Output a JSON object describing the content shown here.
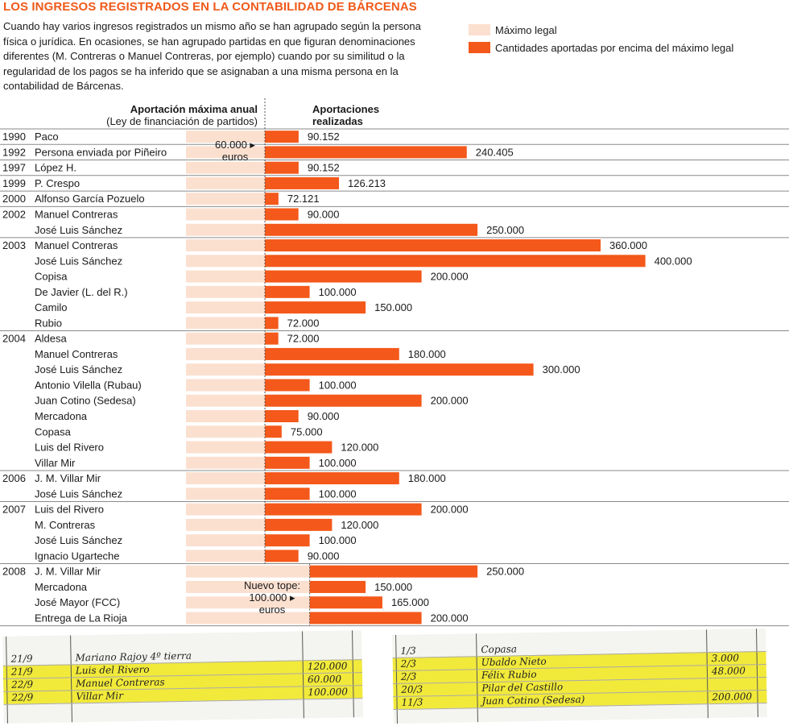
{
  "title": "LOS INGRESOS REGISTRADOS EN LA CONTABILIDAD DE BÁRCENAS",
  "intro": "Cuando hay varios ingresos registrados un mismo año se han agrupado según la persona física o jurídica. En ocasiones, se han agrupado partidas en que figuran denominaciones diferentes (M. Contreras o Manuel Contreras, por ejemplo) cuando por su similitud o la regularidad de los pagos se ha inferido que se asignaban a una misma persona en la contabilidad de Bárcenas.",
  "legend": {
    "max_legal": "Máximo legal",
    "above_max": "Cantidades aportadas por encima del máximo legal"
  },
  "colors": {
    "accent": "#ef5a1a",
    "bar": "#f4581a",
    "max_legal": "#fbe0d0",
    "grid": "#8a8a8a"
  },
  "headers": {
    "left_bold": "Aportación máxima anual",
    "left_sub": "(Ley de financiación de partidos)",
    "right_line1": "Aportaciones",
    "right_line2": "realizadas"
  },
  "chart_data": {
    "type": "bar",
    "orientation": "horizontal",
    "unit": "euros",
    "rows": [
      {
        "year": "1990",
        "name": "Paco",
        "value": 90152,
        "label": "90.152",
        "max_legal": 60000
      },
      {
        "year": "1992",
        "name": "Persona enviada por Piñeiro",
        "value": 240405,
        "label": "240.405",
        "max_legal": 60000
      },
      {
        "year": "1997",
        "name": "López H.",
        "value": 90152,
        "label": "90.152",
        "max_legal": 60000
      },
      {
        "year": "1999",
        "name": "P. Crespo",
        "value": 126213,
        "label": "126.213",
        "max_legal": 60000
      },
      {
        "year": "2000",
        "name": "Alfonso García Pozuelo",
        "value": 72121,
        "label": "72.121",
        "max_legal": 60000
      },
      {
        "year": "2002",
        "name": "Manuel Contreras",
        "value": 90000,
        "label": "90.000",
        "max_legal": 60000
      },
      {
        "year": "",
        "name": "José Luis Sánchez",
        "value": 250000,
        "label": "250.000",
        "max_legal": 60000
      },
      {
        "year": "2003",
        "name": "Manuel Contreras",
        "value": 360000,
        "label": "360.000",
        "max_legal": 60000
      },
      {
        "year": "",
        "name": "José Luis Sánchez",
        "value": 400000,
        "label": "400.000",
        "max_legal": 60000
      },
      {
        "year": "",
        "name": "Copisa",
        "value": 200000,
        "label": "200.000",
        "max_legal": 60000
      },
      {
        "year": "",
        "name": "De Javier (L. del R.)",
        "value": 100000,
        "label": "100.000",
        "max_legal": 60000
      },
      {
        "year": "",
        "name": "Camilo",
        "value": 150000,
        "label": "150.000",
        "max_legal": 60000
      },
      {
        "year": "",
        "name": "Rubio",
        "value": 72000,
        "label": "72.000",
        "max_legal": 60000
      },
      {
        "year": "2004",
        "name": "Aldesa",
        "value": 72000,
        "label": "72.000",
        "max_legal": 60000
      },
      {
        "year": "",
        "name": "Manuel Contreras",
        "value": 180000,
        "label": "180.000",
        "max_legal": 60000
      },
      {
        "year": "",
        "name": "José Luis Sánchez",
        "value": 300000,
        "label": "300.000",
        "max_legal": 60000
      },
      {
        "year": "",
        "name": "Antonio Vilella (Rubau)",
        "value": 100000,
        "label": "100.000",
        "max_legal": 60000
      },
      {
        "year": "",
        "name": "Juan Cotino (Sedesa)",
        "value": 200000,
        "label": "200.000",
        "max_legal": 60000
      },
      {
        "year": "",
        "name": "Mercadona",
        "value": 90000,
        "label": "90.000",
        "max_legal": 60000
      },
      {
        "year": "",
        "name": "Copasa",
        "value": 75000,
        "label": "75.000",
        "max_legal": 60000
      },
      {
        "year": "",
        "name": "Luis del Rivero",
        "value": 120000,
        "label": "120.000",
        "max_legal": 60000
      },
      {
        "year": "",
        "name": "Villar Mir",
        "value": 100000,
        "label": "100.000",
        "max_legal": 60000
      },
      {
        "year": "2006",
        "name": "J. M. Villar Mir",
        "value": 180000,
        "label": "180.000",
        "max_legal": 60000
      },
      {
        "year": "",
        "name": "José Luis Sánchez",
        "value": 100000,
        "label": "100.000",
        "max_legal": 60000
      },
      {
        "year": "2007",
        "name": "Luis del Rivero",
        "value": 200000,
        "label": "200.000",
        "max_legal": 60000
      },
      {
        "year": "",
        "name": "M. Contreras",
        "value": 120000,
        "label": "120.000",
        "max_legal": 60000
      },
      {
        "year": "",
        "name": "José Luis Sánchez",
        "value": 100000,
        "label": "100.000",
        "max_legal": 60000
      },
      {
        "year": "",
        "name": "Ignacio Ugarteche",
        "value": 90000,
        "label": "90.000",
        "max_legal": 60000
      },
      {
        "year": "2008",
        "name": "J. M. Villar Mir",
        "value": 250000,
        "label": "250.000",
        "max_legal": 100000
      },
      {
        "year": "",
        "name": "Mercadona",
        "value": 150000,
        "label": "150.000",
        "max_legal": 100000
      },
      {
        "year": "",
        "name": "José Mayor (FCC)",
        "value": 165000,
        "label": "165.000",
        "max_legal": 100000
      },
      {
        "year": "",
        "name": "Entrega de La Rioja",
        "value": 200000,
        "label": "200.000",
        "max_legal": 100000
      }
    ],
    "annotations": [
      {
        "line1": "60.000",
        "line2": "euros"
      },
      {
        "line1": "Nuevo tope:",
        "line2": "100.000",
        "line3": "euros"
      }
    ]
  },
  "photos": {
    "left_rows": [
      {
        "date": "21/9",
        "text": "Mariano Rajoy 4º tierra",
        "amount": ""
      },
      {
        "date": "21/9",
        "text": "Luis del Rivero",
        "amount": "120.000"
      },
      {
        "date": "22/9",
        "text": "Manuel Contreras",
        "amount": "60.000"
      },
      {
        "date": "22/9",
        "text": "Villar Mir",
        "amount": "100.000"
      }
    ],
    "right_rows": [
      {
        "date": "1/3",
        "text": "Copasa",
        "amount": ""
      },
      {
        "date": "2/3",
        "text": "Ubaldo Nieto",
        "amount": "3.000"
      },
      {
        "date": "2/3",
        "text": "Félix Rubio",
        "amount": "48.000"
      },
      {
        "date": "20/3",
        "text": "Pilar del Castillo",
        "amount": ""
      },
      {
        "date": "11/3",
        "text": "Juan Cotino (Sedesa)",
        "amount": "200.000"
      }
    ]
  }
}
